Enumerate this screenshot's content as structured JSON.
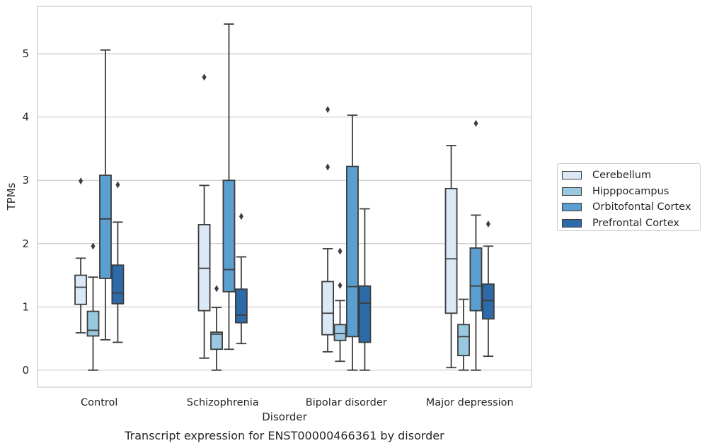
{
  "chart_data": {
    "type": "box",
    "xlabel": "Disorder",
    "ylabel": "TPMs",
    "ylim": [
      -0.27,
      5.75
    ],
    "yticks": [
      0,
      1,
      2,
      3,
      4,
      5
    ],
    "grid": "horizontal",
    "legend_position": "right",
    "categories": [
      "Control",
      "Schizophrenia",
      "Bipolar disorder",
      "Major depression"
    ],
    "series": [
      {
        "name": "Cerebellum",
        "color": "#dbe9f6",
        "boxes": [
          {
            "whislo": 0.59,
            "q1": 1.04,
            "med": 1.31,
            "q3": 1.5,
            "whishi": 1.77,
            "fliers": [
              2.99
            ]
          },
          {
            "whislo": 0.19,
            "q1": 0.94,
            "med": 1.61,
            "q3": 2.3,
            "whishi": 2.92,
            "fliers": [
              4.63
            ]
          },
          {
            "whislo": 0.29,
            "q1": 0.56,
            "med": 0.9,
            "q3": 1.4,
            "whishi": 1.92,
            "fliers": [
              3.21,
              4.12
            ]
          },
          {
            "whislo": 0.04,
            "q1": 0.9,
            "med": 1.76,
            "q3": 2.87,
            "whishi": 3.55,
            "fliers": []
          }
        ]
      },
      {
        "name": "Hipppocampus",
        "color": "#9ac8e0",
        "boxes": [
          {
            "whislo": 0.0,
            "q1": 0.54,
            "med": 0.63,
            "q3": 0.93,
            "whishi": 1.47,
            "fliers": [
              1.96
            ]
          },
          {
            "whislo": 0.0,
            "q1": 0.33,
            "med": 0.57,
            "q3": 0.6,
            "whishi": 0.99,
            "fliers": [
              1.29
            ]
          },
          {
            "whislo": 0.14,
            "q1": 0.47,
            "med": 0.58,
            "q3": 0.72,
            "whishi": 1.1,
            "fliers": [
              1.34,
              1.88
            ]
          },
          {
            "whislo": 0.0,
            "q1": 0.23,
            "med": 0.53,
            "q3": 0.72,
            "whishi": 1.12,
            "fliers": []
          }
        ]
      },
      {
        "name": "Orbitofontal Cortex",
        "color": "#5a9fcf",
        "boxes": [
          {
            "whislo": 0.48,
            "q1": 1.45,
            "med": 2.39,
            "q3": 3.08,
            "whishi": 5.06,
            "fliers": []
          },
          {
            "whislo": 0.33,
            "q1": 1.24,
            "med": 1.59,
            "q3": 3.0,
            "whishi": 5.47,
            "fliers": []
          },
          {
            "whislo": 0.0,
            "q1": 0.53,
            "med": 1.32,
            "q3": 3.22,
            "whishi": 4.03,
            "fliers": []
          },
          {
            "whislo": 0.0,
            "q1": 0.94,
            "med": 1.33,
            "q3": 1.93,
            "whishi": 2.45,
            "fliers": [
              3.9
            ]
          }
        ]
      },
      {
        "name": "Prefrontal Cortex",
        "color": "#2c6aa8",
        "boxes": [
          {
            "whislo": 0.44,
            "q1": 1.05,
            "med": 1.22,
            "q3": 1.66,
            "whishi": 2.34,
            "fliers": [
              2.93
            ]
          },
          {
            "whislo": 0.42,
            "q1": 0.75,
            "med": 0.87,
            "q3": 1.28,
            "whishi": 1.79,
            "fliers": [
              2.43
            ]
          },
          {
            "whislo": 0.0,
            "q1": 0.44,
            "med": 1.06,
            "q3": 1.33,
            "whishi": 2.55,
            "fliers": []
          },
          {
            "whislo": 0.22,
            "q1": 0.81,
            "med": 1.1,
            "q3": 1.36,
            "whishi": 1.96,
            "fliers": [
              2.31
            ]
          }
        ]
      }
    ]
  },
  "caption": "Transcript expression for ENST00000466361 by disorder"
}
